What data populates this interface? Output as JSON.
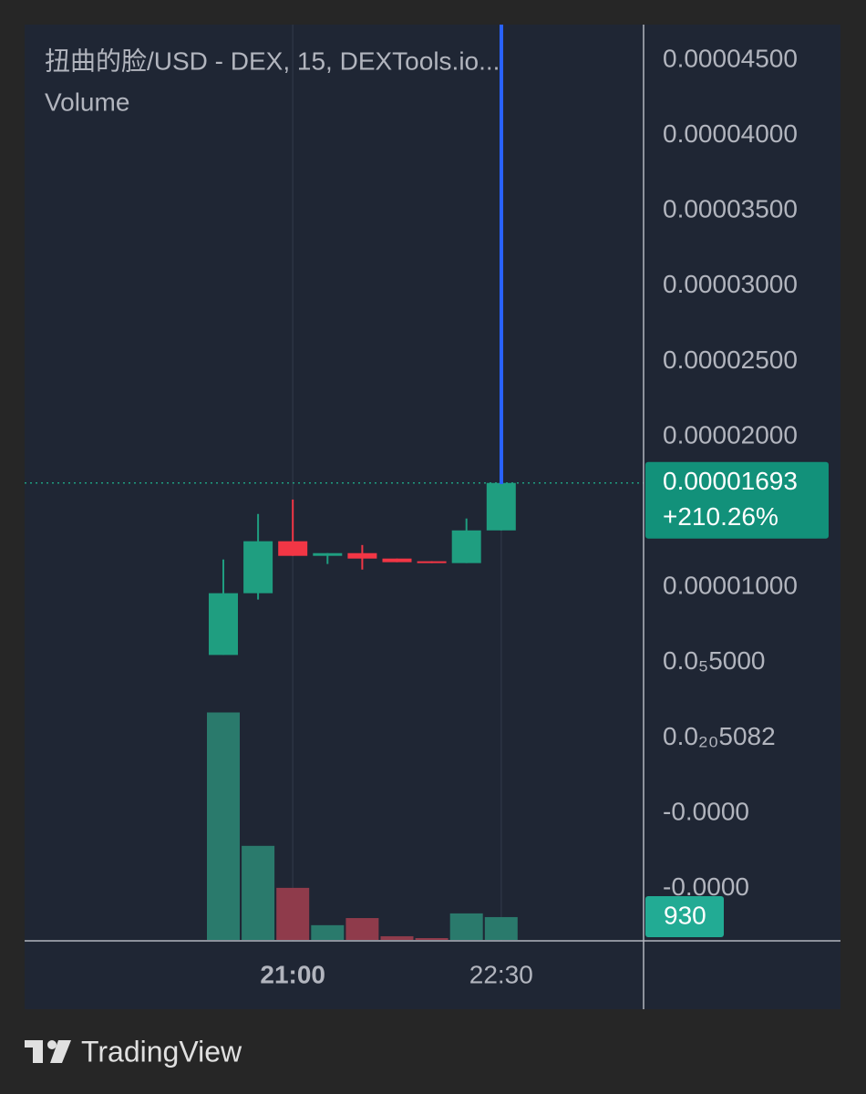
{
  "chart_data": {
    "type": "candlestick",
    "title": "扭曲的脸/USD - DEX, 15, DEXTools.io...",
    "subtitle": "Volume",
    "categories": [
      null,
      null,
      "21:00",
      null,
      null,
      null,
      null,
      null,
      "22:30"
    ],
    "open": [
      5.51e-06,
      9.61e-06,
      1.306e-05,
      1.209e-05,
      1.227e-05,
      1.191e-05,
      1.173e-05,
      1.161e-05,
      1.378e-05
    ],
    "high": [
      1.185e-05,
      1.487e-05,
      1.583e-05,
      1.227e-05,
      1.281e-05,
      1.191e-05,
      1.173e-05,
      1.457e-05,
      1.693e-05
    ],
    "low": [
      5.51e-06,
      9.19e-06,
      1.209e-05,
      1.155e-05,
      1.118e-05,
      1.167e-05,
      1.161e-05,
      1.161e-05,
      1.378e-05
    ],
    "close": [
      9.61e-06,
      1.306e-05,
      1.209e-05,
      1.227e-05,
      1.191e-05,
      1.167e-05,
      1.161e-05,
      1.378e-05,
      1.693e-05
    ],
    "volume": [
      9260,
      3830,
      2120,
      600,
      890,
      150,
      75,
      1080,
      930
    ],
    "up_color": "#1f9e80",
    "down_color": "#f23645",
    "volume_up_color": "#2a7a6c",
    "volume_down_color": "#8f3b4b",
    "price_change": "+210.26%",
    "ylim": [
      4.736e-05,
      -1.347e-05
    ],
    "yticks": [
      {
        "value": 4.5e-05,
        "label": "0.00004500"
      },
      {
        "value": 4e-05,
        "label": "0.00004000"
      },
      {
        "value": 3.5e-05,
        "label": "0.00003500"
      },
      {
        "value": 3e-05,
        "label": "0.00003000"
      },
      {
        "value": 2.5e-05,
        "label": "0.00002500"
      },
      {
        "value": 2e-05,
        "label": "0.00002000"
      },
      {
        "value": 1e-05,
        "label": "0.00001000"
      },
      {
        "value": 5e-06,
        "label": "0.0₅5000"
      },
      {
        "value": 5.082e-21,
        "label": "0.0₂₀5082"
      },
      {
        "value": -5e-06,
        "label": "-0.0000"
      },
      {
        "value": -1e-05,
        "label": "-0.0000"
      }
    ],
    "volume_ylim": [
      0,
      37300
    ],
    "grid": true,
    "brand": "TradingView"
  }
}
